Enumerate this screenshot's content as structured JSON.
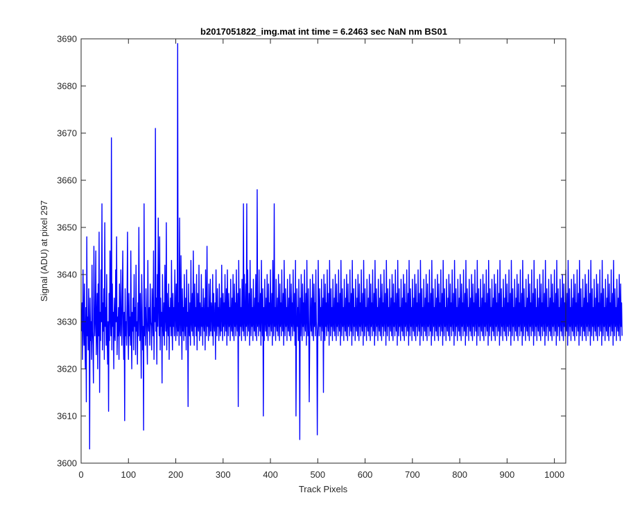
{
  "chart_data": {
    "type": "line",
    "title": "b2017051822_img.mat int time = 6.2463 sec  NaN nm BS01",
    "xlabel": "Track Pixels",
    "ylabel": "Signal (ADU) at pixel 297",
    "xlim": [
      0,
      1024
    ],
    "ylim": [
      3600,
      3690
    ],
    "xticks": [
      "0",
      "100",
      "200",
      "300",
      "400",
      "500",
      "600",
      "700",
      "800",
      "900",
      "1000"
    ],
    "yticks": [
      "3600",
      "3610",
      "3620",
      "3630",
      "3640",
      "3650",
      "3660",
      "3670",
      "3680",
      "3690"
    ],
    "grid": false,
    "series": [
      {
        "color": "#0000ff",
        "x_start": 1,
        "x_step": 1,
        "values": [
          3628,
          3634,
          3622,
          3641,
          3630,
          3625,
          3638,
          3626,
          3620,
          3633,
          3613,
          3648,
          3627,
          3631,
          3624,
          3637,
          3629,
          3603,
          3635,
          3626,
          3630,
          3622,
          3642,
          3628,
          3625,
          3617,
          3646,
          3633,
          3627,
          3631,
          3645,
          3623,
          3629,
          3636,
          3620,
          3638,
          3627,
          3649,
          3615,
          3632,
          3626,
          3641,
          3630,
          3655,
          3624,
          3634,
          3628,
          3637,
          3622,
          3651,
          3629,
          3633,
          3625,
          3640,
          3627,
          3621,
          3630,
          3611,
          3636,
          3626,
          3645,
          3631,
          3627,
          3669,
          3624,
          3638,
          3629,
          3632,
          3620,
          3635,
          3628,
          3626,
          3641,
          3630,
          3648,
          3623,
          3631,
          3627,
          3633,
          3622,
          3638,
          3629,
          3627,
          3641,
          3631,
          3625,
          3634,
          3645,
          3629,
          3622,
          3632,
          3609,
          3637,
          3627,
          3630,
          3625,
          3634,
          3649,
          3628,
          3622,
          3636,
          3627,
          3631,
          3625,
          3645,
          3630,
          3620,
          3632,
          3628,
          3635,
          3624,
          3640,
          3629,
          3633,
          3623,
          3642,
          3628,
          3630,
          3621,
          3634,
          3627,
          3650,
          3632,
          3626,
          3636,
          3629,
          3618,
          3640,
          3633,
          3624,
          3629,
          3607,
          3655,
          3627,
          3633,
          3625,
          3637,
          3631,
          3627,
          3621,
          3643,
          3630,
          3628,
          3633,
          3625,
          3638,
          3630,
          3629,
          3624,
          3637,
          3631,
          3627,
          3645,
          3622,
          3633,
          3630,
          3671,
          3628,
          3635,
          3621,
          3640,
          3629,
          3652,
          3633,
          3627,
          3648,
          3624,
          3635,
          3629,
          3632,
          3617,
          3640,
          3630,
          3627,
          3634,
          3625,
          3642,
          3631,
          3628,
          3651,
          3624,
          3636,
          3630,
          3627,
          3638,
          3622,
          3633,
          3629,
          3635,
          3627,
          3643,
          3630,
          3624,
          3636,
          3629,
          3633,
          3627,
          3641,
          3632,
          3626,
          3638,
          3630,
          3627,
          3689,
          3628,
          3634,
          3625,
          3652,
          3630,
          3627,
          3644,
          3631,
          3622,
          3637,
          3628,
          3633,
          3626,
          3640,
          3630,
          3627,
          3635,
          3624,
          3641,
          3629,
          3632,
          3612,
          3638,
          3630,
          3627,
          3634,
          3625,
          3643,
          3630,
          3628,
          3636,
          3627,
          3645,
          3631,
          3625,
          3638,
          3629,
          3633,
          3627,
          3640,
          3624,
          3636,
          3630,
          3628,
          3642,
          3626,
          3634,
          3631,
          3627,
          3640,
          3629,
          3633,
          3625,
          3637,
          3630,
          3628,
          3635,
          3624,
          3641,
          3631,
          3627,
          3646,
          3629,
          3633,
          3626,
          3638,
          3630,
          3627,
          3639,
          3628,
          3634,
          3632,
          3627,
          3640,
          3625,
          3636,
          3630,
          3628,
          3634,
          3622,
          3641,
          3631,
          3627,
          3637,
          3629,
          3633,
          3626,
          3638,
          3630,
          3627,
          3635,
          3628,
          3642,
          3631,
          3626,
          3636,
          3629,
          3634,
          3627,
          3640,
          3630,
          3628,
          3637,
          3625,
          3641,
          3631,
          3627,
          3636,
          3629,
          3633,
          3626,
          3639,
          3630,
          3628,
          3635,
          3627,
          3640,
          3631,
          3626,
          3638,
          3629,
          3634,
          3627,
          3641,
          3630,
          3628,
          3636,
          3612,
          3643,
          3631,
          3627,
          3637,
          3629,
          3633,
          3626,
          3639,
          3630,
          3628,
          3655,
          3627,
          3640,
          3631,
          3626,
          3638,
          3629,
          3655,
          3627,
          3641,
          3630,
          3628,
          3636,
          3625,
          3643,
          3631,
          3627,
          3637,
          3629,
          3633,
          3626,
          3639,
          3630,
          3628,
          3635,
          3627,
          3640,
          3631,
          3626,
          3658,
          3629,
          3634,
          3627,
          3641,
          3630,
          3628,
          3636,
          3625,
          3643,
          3631,
          3627,
          3637,
          3610,
          3633,
          3626,
          3639,
          3630,
          3628,
          3635,
          3627,
          3640,
          3631,
          3626,
          3638,
          3629,
          3634,
          3627,
          3641,
          3630,
          3628,
          3636,
          3625,
          3643,
          3631,
          3627,
          3655,
          3629,
          3633,
          3626,
          3639,
          3630,
          3628,
          3635,
          3627,
          3640,
          3631,
          3626,
          3638,
          3629,
          3634,
          3627,
          3641,
          3630,
          3628,
          3636,
          3625,
          3643,
          3631,
          3627,
          3637,
          3629,
          3633,
          3626,
          3639,
          3630,
          3628,
          3635,
          3627,
          3640,
          3631,
          3626,
          3638,
          3629,
          3634,
          3627,
          3641,
          3630,
          3628,
          3636,
          3625,
          3643,
          3610,
          3627,
          3637,
          3629,
          3633,
          3626,
          3639,
          3630,
          3605,
          3635,
          3627,
          3640,
          3631,
          3626,
          3638,
          3629,
          3634,
          3627,
          3641,
          3630,
          3628,
          3636,
          3625,
          3643,
          3631,
          3627,
          3637,
          3629,
          3613,
          3626,
          3639,
          3630,
          3628,
          3635,
          3627,
          3640,
          3631,
          3626,
          3638,
          3629,
          3634,
          3627,
          3641,
          3630,
          3628,
          3606,
          3625,
          3643,
          3631,
          3627,
          3637,
          3629,
          3633,
          3626,
          3639,
          3630,
          3628,
          3635,
          3615,
          3640,
          3631,
          3626,
          3638,
          3629,
          3634,
          3627,
          3641,
          3630,
          3628,
          3636,
          3625,
          3643,
          3631,
          3627,
          3637,
          3629,
          3633,
          3626,
          3639,
          3630,
          3628,
          3635,
          3627,
          3640,
          3631,
          3626,
          3638,
          3629,
          3634,
          3627,
          3641,
          3630,
          3628,
          3636,
          3625,
          3643,
          3631,
          3627,
          3637,
          3629,
          3633,
          3626,
          3639,
          3630,
          3628,
          3635,
          3627,
          3640,
          3631,
          3626,
          3638,
          3629,
          3634,
          3627,
          3641,
          3630,
          3628,
          3636,
          3625,
          3643,
          3631,
          3627,
          3637,
          3629,
          3633,
          3626,
          3639,
          3630,
          3628,
          3635,
          3627,
          3640,
          3631,
          3626,
          3638,
          3629,
          3634,
          3627,
          3641,
          3630,
          3628,
          3636,
          3625,
          3643,
          3631,
          3627,
          3637,
          3629,
          3633,
          3626,
          3639,
          3630,
          3628,
          3635,
          3627,
          3640,
          3631,
          3626,
          3638,
          3629,
          3634,
          3627,
          3641,
          3630,
          3628,
          3636,
          3625,
          3643,
          3631,
          3627,
          3637,
          3629,
          3633,
          3626,
          3639,
          3630,
          3628,
          3635,
          3627,
          3640,
          3631,
          3626,
          3638,
          3629,
          3634,
          3627,
          3641,
          3630,
          3628,
          3636,
          3625,
          3643,
          3631,
          3627,
          3637,
          3629,
          3633,
          3626,
          3639,
          3630,
          3628,
          3635,
          3627,
          3640,
          3631,
          3626,
          3638,
          3629,
          3634,
          3627,
          3641,
          3630,
          3628,
          3636,
          3625,
          3643,
          3631,
          3627,
          3637,
          3629,
          3633,
          3626,
          3639,
          3630,
          3628,
          3635,
          3627,
          3640,
          3631,
          3626,
          3638,
          3629,
          3634,
          3627,
          3641,
          3630,
          3628,
          3636,
          3625,
          3643,
          3631,
          3627,
          3637,
          3629,
          3633,
          3626,
          3639,
          3630,
          3628,
          3635,
          3627,
          3640,
          3631,
          3626,
          3638,
          3629,
          3634,
          3627,
          3641,
          3630,
          3628,
          3636,
          3625,
          3643,
          3631,
          3627,
          3637,
          3629,
          3633,
          3626,
          3639,
          3630,
          3628,
          3635,
          3627,
          3640,
          3631,
          3626,
          3638,
          3629,
          3634,
          3627,
          3641,
          3630,
          3628,
          3636,
          3625,
          3643,
          3631,
          3627,
          3637,
          3629,
          3633,
          3626,
          3639,
          3630,
          3628,
          3635,
          3627,
          3640,
          3631,
          3626,
          3638,
          3629,
          3634,
          3627,
          3641,
          3630,
          3628,
          3636,
          3625,
          3643,
          3631,
          3627,
          3637,
          3629,
          3633,
          3626,
          3639,
          3630,
          3628,
          3635,
          3627,
          3640,
          3631,
          3626,
          3638,
          3629,
          3634,
          3627,
          3641,
          3630,
          3628,
          3636,
          3625,
          3643,
          3631,
          3627,
          3637,
          3629,
          3633,
          3626,
          3639,
          3630,
          3628,
          3635,
          3627,
          3640,
          3631,
          3626,
          3638,
          3629,
          3634,
          3627,
          3641,
          3630,
          3628,
          3636,
          3625,
          3643,
          3631,
          3627,
          3637,
          3629,
          3633,
          3626,
          3639,
          3630,
          3628,
          3635,
          3627,
          3640,
          3631,
          3626,
          3638,
          3629,
          3634,
          3627,
          3641,
          3630,
          3628,
          3636,
          3625,
          3643,
          3631,
          3627,
          3637,
          3629,
          3633,
          3626,
          3639,
          3630,
          3628,
          3635,
          3627,
          3640,
          3631,
          3626,
          3638,
          3629,
          3634,
          3627,
          3641,
          3630,
          3628,
          3636,
          3625,
          3643,
          3631,
          3627,
          3637,
          3629,
          3633,
          3626,
          3639,
          3630,
          3628,
          3635,
          3627,
          3640,
          3631,
          3626,
          3638,
          3629,
          3634,
          3627,
          3641,
          3630,
          3628,
          3636,
          3625,
          3643,
          3631,
          3627,
          3637,
          3629,
          3633,
          3626,
          3639,
          3630,
          3628,
          3635,
          3627,
          3640,
          3631,
          3626,
          3638,
          3629,
          3634,
          3627,
          3641,
          3630,
          3628,
          3636,
          3625,
          3643,
          3631,
          3627,
          3637,
          3629,
          3633,
          3626,
          3639,
          3630,
          3628,
          3635,
          3627,
          3640,
          3631,
          3626,
          3638,
          3629,
          3634,
          3627,
          3641,
          3630,
          3628,
          3636,
          3625,
          3643,
          3631,
          3627,
          3637,
          3629,
          3633,
          3626,
          3639,
          3630,
          3628,
          3635,
          3627,
          3640,
          3631,
          3626,
          3638,
          3629,
          3634,
          3627,
          3641,
          3630,
          3628,
          3636,
          3625,
          3643,
          3631,
          3627,
          3637,
          3629,
          3633,
          3626,
          3639,
          3630,
          3628,
          3635,
          3627,
          3640,
          3631,
          3626,
          3638,
          3629,
          3634,
          3627,
          3641,
          3630,
          3628,
          3636,
          3625,
          3643,
          3631,
          3627,
          3637,
          3629,
          3633,
          3626,
          3639,
          3630,
          3628,
          3635,
          3627,
          3640,
          3631,
          3626,
          3638,
          3629,
          3634,
          3627,
          3641,
          3630,
          3628,
          3636,
          3625,
          3643,
          3631,
          3627,
          3637,
          3629,
          3633,
          3626,
          3639,
          3630,
          3628,
          3635,
          3627,
          3640,
          3631,
          3626,
          3638,
          3629,
          3634,
          3627,
          3641,
          3630,
          3628,
          3636,
          3625,
          3643,
          3631,
          3627,
          3637,
          3629,
          3633,
          3626,
          3639,
          3630,
          3628,
          3635,
          3627,
          3640,
          3631,
          3626,
          3638,
          3629,
          3634,
          3627,
          3641,
          3630,
          3628,
          3636,
          3625,
          3643,
          3631,
          3627,
          3637,
          3629,
          3633,
          3626,
          3639,
          3630,
          3628,
          3635,
          3627,
          3640,
          3631,
          3626,
          3638,
          3629,
          3634,
          3627,
          3641,
          3630,
          3628,
          3636,
          3625,
          3643,
          3631,
          3627,
          3637,
          3629,
          3633,
          3626,
          3639,
          3630,
          3628,
          3635,
          3627,
          3640,
          3631,
          3626,
          3638,
          3629,
          3634,
          3627,
          3641,
          3630,
          3628,
          3636,
          3625,
          3643,
          3631,
          3627,
          3637,
          3629,
          3633,
          3626,
          3639,
          3630,
          3628,
          3635,
          3627,
          3640,
          3631,
          3626,
          3638,
          3629,
          3634,
          3627,
          3641,
          3630,
          3628,
          3636,
          3625,
          3643,
          3631,
          3627,
          3637,
          3629,
          3633,
          3626,
          3639,
          3630,
          3628,
          3635,
          3627,
          3640,
          3631,
          3626,
          3638,
          3629,
          3634,
          3627
        ]
      }
    ]
  }
}
